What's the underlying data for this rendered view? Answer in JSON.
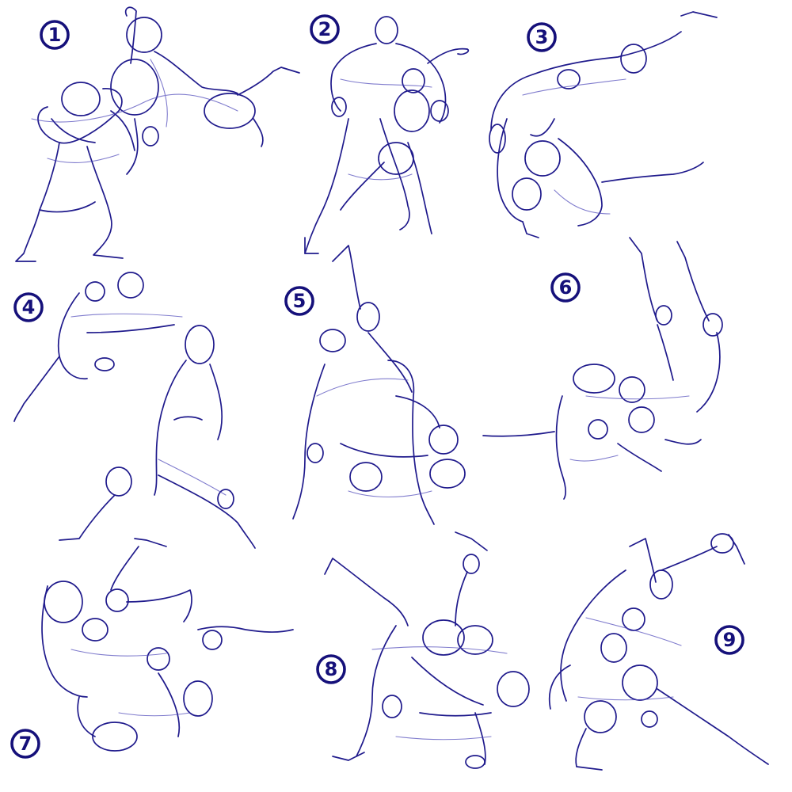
{
  "sheet": {
    "ink_color": "#1f1a8c",
    "background": "#ffffff",
    "panels": [
      {
        "label": "1"
      },
      {
        "label": "2"
      },
      {
        "label": "3"
      },
      {
        "label": "4"
      },
      {
        "label": "5"
      },
      {
        "label": "6"
      },
      {
        "label": "7"
      },
      {
        "label": "8"
      },
      {
        "label": "9"
      }
    ]
  }
}
